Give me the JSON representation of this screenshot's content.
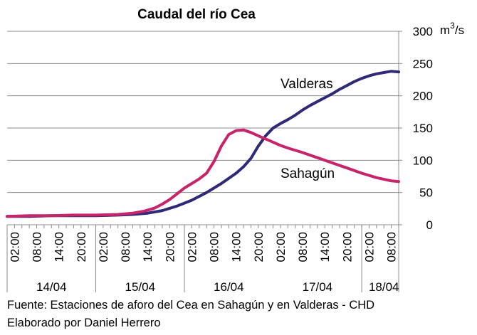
{
  "chart_data": {
    "type": "line",
    "title": "Caudal del río Cea",
    "ylabel_base": "m",
    "ylabel_exp": "3",
    "ylabel_tail": "/s",
    "ylim": [
      0,
      300
    ],
    "yticks": [
      0,
      50,
      100,
      150,
      200,
      250,
      300
    ],
    "grid": "horizontal",
    "x_tick_labels": [
      "02:00",
      "08:00",
      "14:00",
      "20:00",
      "02:00",
      "08:00",
      "14:00",
      "20:00",
      "02:00",
      "08:00",
      "14:00",
      "20:00",
      "02:00",
      "08:00",
      "14:00",
      "20:00",
      "02:00",
      "08:00"
    ],
    "x_tick_hours": [
      26,
      32,
      38,
      44,
      50,
      56,
      62,
      68,
      74,
      80,
      86,
      92,
      98,
      104,
      110,
      116,
      122,
      128
    ],
    "x_day_labels": [
      {
        "label": "14/04",
        "center_hour": 36
      },
      {
        "label": "15/04",
        "center_hour": 60
      },
      {
        "label": "16/04",
        "center_hour": 84
      },
      {
        "label": "17/04",
        "center_hour": 108
      },
      {
        "label": "18/04",
        "center_hour": 126
      }
    ],
    "x_day_separators_hour": [
      48,
      72,
      120
    ],
    "x_range_hours": [
      24,
      130
    ],
    "x_unit": "hours since 00:00 of 13/04",
    "series": [
      {
        "name": "Valderas",
        "color": "#2e2a78",
        "x": [
          24,
          30,
          36,
          42,
          48,
          54,
          58,
          62,
          66,
          70,
          74,
          78,
          82,
          86,
          88,
          90,
          92,
          94,
          96,
          98,
          100,
          102,
          104,
          106,
          108,
          110,
          112,
          114,
          116,
          118,
          120,
          122,
          124,
          126,
          128,
          130
        ],
        "y": [
          13,
          13,
          14,
          14,
          14,
          15,
          16,
          18,
          22,
          29,
          38,
          50,
          64,
          80,
          90,
          103,
          122,
          138,
          150,
          157,
          163,
          170,
          178,
          185,
          191,
          197,
          203,
          210,
          216,
          222,
          227,
          231,
          234,
          236,
          238,
          237
        ]
      },
      {
        "name": "Sahagún",
        "color": "#c8246a",
        "x": [
          24,
          30,
          36,
          42,
          48,
          54,
          58,
          61,
          64,
          66,
          68,
          70,
          72,
          74,
          76,
          78,
          80,
          82,
          84,
          86,
          88,
          90,
          92,
          94,
          96,
          98,
          100,
          104,
          108,
          112,
          116,
          120,
          124,
          128,
          130
        ],
        "y": [
          13,
          14,
          14,
          15,
          15,
          16,
          18,
          21,
          26,
          32,
          39,
          48,
          57,
          64,
          71,
          80,
          98,
          122,
          140,
          146,
          147,
          143,
          138,
          133,
          128,
          123,
          119,
          112,
          104,
          96,
          88,
          80,
          73,
          68,
          67
        ]
      }
    ]
  },
  "footer": {
    "line1": "Fuente: Estaciones de aforo del Cea en Sahagún y en Valderas - CHD",
    "line2": "Elaborado por Daniel Herrero"
  }
}
